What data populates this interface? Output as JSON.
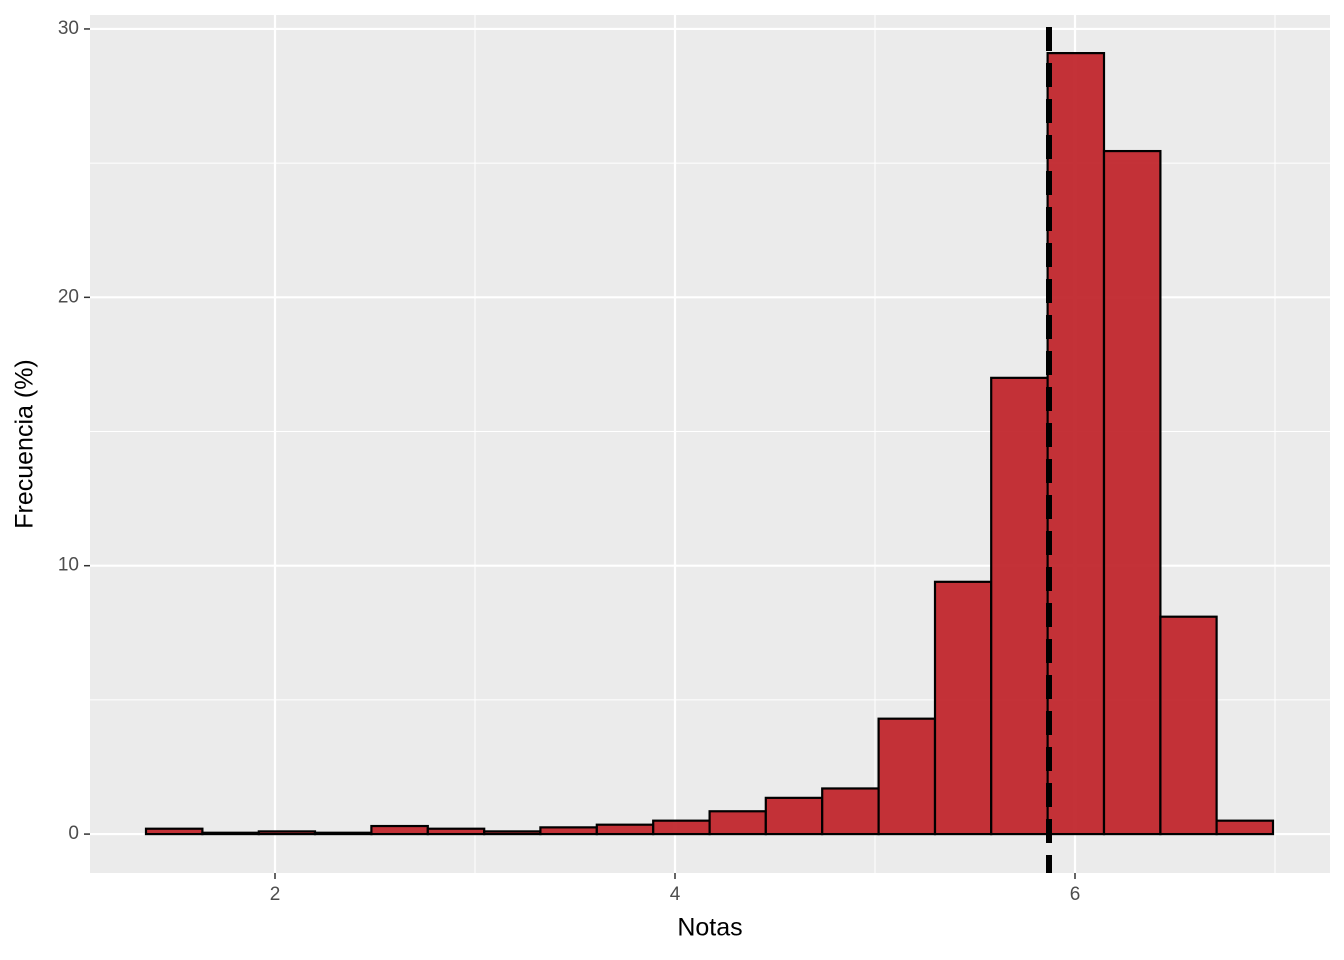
{
  "chart_data": {
    "type": "histogram",
    "xlabel": "Notas",
    "ylabel": "Frecuencia (%)",
    "bins": [
      1.355,
      1.637,
      1.919,
      2.2,
      2.482,
      2.764,
      3.046,
      3.327,
      3.609,
      3.891,
      4.173,
      4.454,
      4.736,
      5.018,
      5.3,
      5.581,
      5.863,
      6.145,
      6.427,
      6.708,
      6.99
    ],
    "values": [
      0.2,
      0.05,
      0.1,
      0.05,
      0.3,
      0.2,
      0.1,
      0.25,
      0.35,
      0.5,
      0.85,
      1.35,
      1.7,
      4.3,
      9.4,
      17.0,
      29.1,
      25.45,
      8.1,
      0.5
    ],
    "color": "#c1272d",
    "vline": 5.87,
    "xlim": [
      1.075,
      7.275
    ],
    "ylim": [
      -1.45,
      30.52
    ],
    "xticks": [
      2,
      4,
      6
    ],
    "yticks": [
      0,
      10,
      20,
      30
    ],
    "xminor": [
      1,
      3,
      5,
      7
    ],
    "yminor": [
      5,
      15,
      25
    ],
    "grid": true
  }
}
